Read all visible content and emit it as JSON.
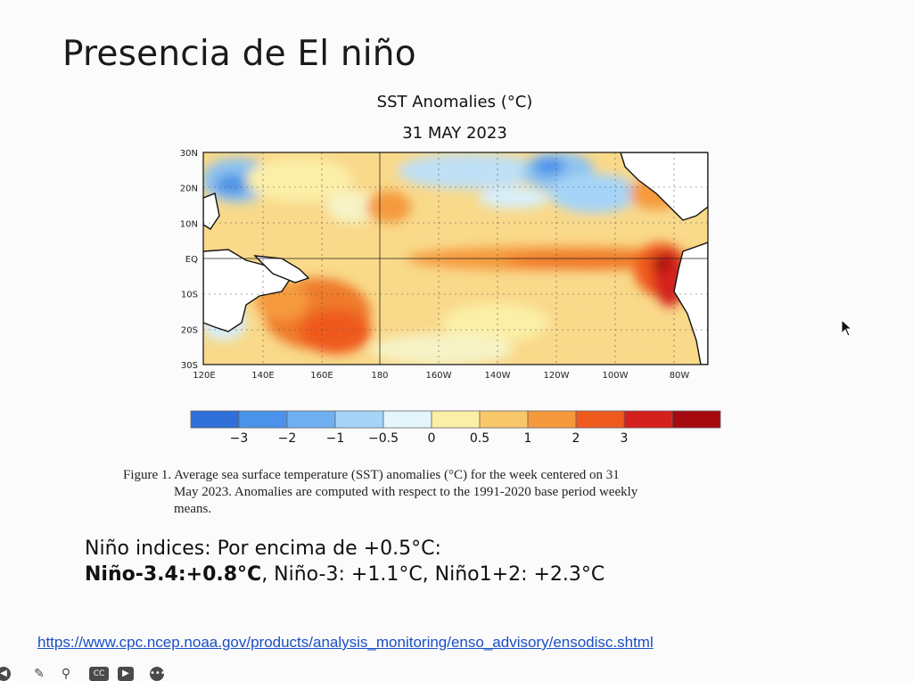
{
  "slide": {
    "title": "Presencia de El niño"
  },
  "map": {
    "title_line1": "SST Anomalies (°C)",
    "title_line2": "31 MAY 2023",
    "lat_labels": [
      "30N",
      "20N",
      "10N",
      "EQ",
      "10S",
      "20S",
      "30S"
    ],
    "lon_labels": [
      "120E",
      "140E",
      "160E",
      "180",
      "160W",
      "140W",
      "120W",
      "100W",
      "80W"
    ]
  },
  "colorbar": {
    "colors": [
      "#2e6fd8",
      "#4b93ea",
      "#6fb0f2",
      "#a6d4f8",
      "#e4f6fb",
      "#fbefa7",
      "#f8c76a",
      "#f59a3c",
      "#ef5a1e",
      "#d4201c",
      "#a40a10"
    ],
    "ticks": [
      "−3",
      "−2",
      "−1",
      "−0.5",
      "0",
      "0.5",
      "1",
      "2",
      "3"
    ]
  },
  "caption": {
    "line1": "Figure 1. Average sea surface temperature (SST) anomalies (°C) for the week centered on 31",
    "line2": "May 2023.  Anomalies are computed with respect to the 1991-2020 base period weekly",
    "line3": "means."
  },
  "indices": {
    "line1": "Niño indices: Por encima de +0.5°C:",
    "bold_part": "Niño-3.4:+0.8°C",
    "rest": ", Niño-3: +1.1°C, Niño1+2: +2.3°C"
  },
  "link": {
    "text": "https://www.cpc.ncep.noaa.gov/products/analysis_monitoring/enso_advisory/ensodisc.shtml"
  },
  "toolbar": {
    "icons": [
      "back-icon",
      "pen-icon",
      "zoom-icon",
      "cc-icon",
      "camera-icon",
      "more-icon"
    ]
  }
}
